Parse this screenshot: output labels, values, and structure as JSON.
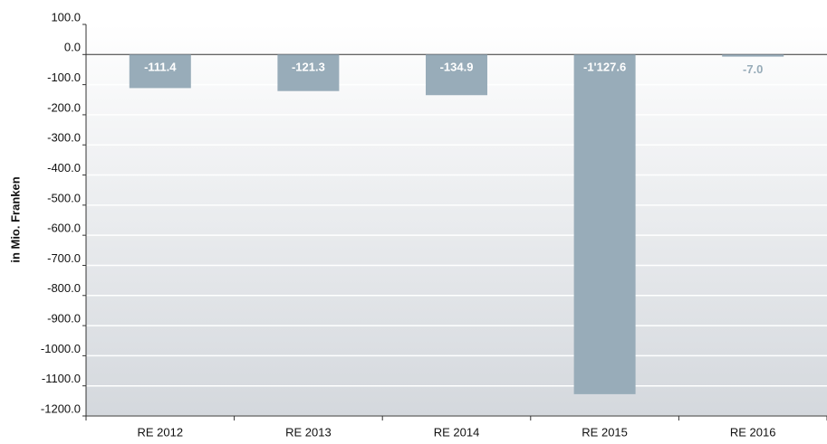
{
  "chart_data": {
    "type": "bar",
    "y_label": "in Mio. Franken",
    "categories": [
      "RE 2012",
      "RE 2013",
      "RE 2014",
      "RE 2015",
      "RE 2016"
    ],
    "values": [
      -111.4,
      -121.3,
      -134.9,
      -1127.6,
      -7.0
    ],
    "value_labels": [
      "-111.4",
      "-121.3",
      "-134.9",
      "-1'127.6",
      "-7.0"
    ],
    "color": "#98acb9",
    "ylim": [
      -1200,
      100
    ],
    "yticks": [
      {
        "value": 100,
        "label": "100.0"
      },
      {
        "value": 0,
        "label": "0.0"
      },
      {
        "value": -100,
        "label": "-100.0"
      },
      {
        "value": -200,
        "label": "-200.0"
      },
      {
        "value": -300,
        "label": "-300.0"
      },
      {
        "value": -400,
        "label": "-400.0"
      },
      {
        "value": -500,
        "label": "-500.0"
      },
      {
        "value": -600,
        "label": "-600.0"
      },
      {
        "value": -700,
        "label": "-700.0"
      },
      {
        "value": -800,
        "label": "-800.0"
      },
      {
        "value": -900,
        "label": "-900.0"
      },
      {
        "value": -1000,
        "label": "-1000.0"
      },
      {
        "value": -1100,
        "label": "-1100.0"
      },
      {
        "value": -1200,
        "label": "-1200.0"
      }
    ],
    "grid": true
  }
}
